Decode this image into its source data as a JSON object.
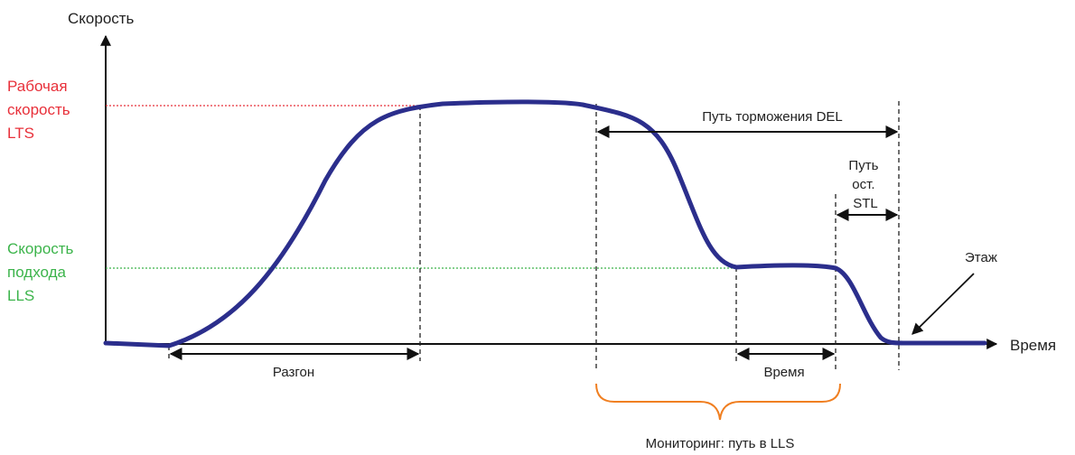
{
  "y_axis_label": "Скорость",
  "x_axis_label": "Время",
  "working_speed": [
    "Рабочая",
    "скорость",
    "LTS"
  ],
  "approach_speed": [
    "Скорость",
    "подхода",
    "LLS"
  ],
  "braking_path": "Путь торможения DEL",
  "stop_path": [
    "Путь",
    "ост.",
    "STL"
  ],
  "floor": "Этаж",
  "acceleration": "Разгон",
  "time_span": "Время",
  "monitoring": "Мониторинг: путь в LLS"
}
